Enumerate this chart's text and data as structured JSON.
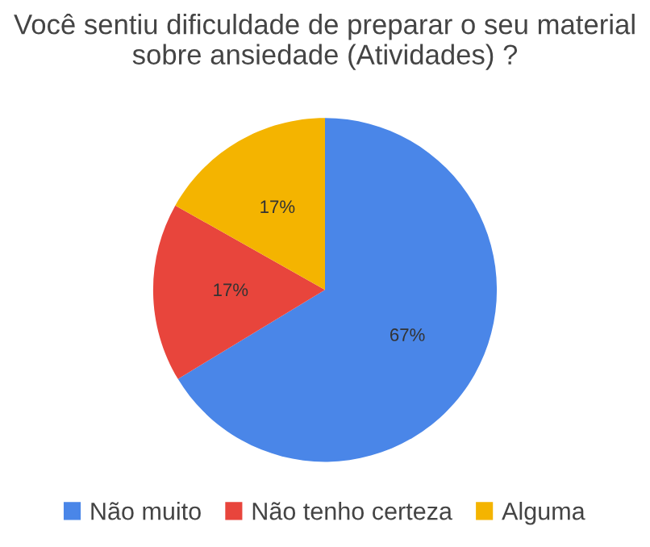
{
  "chart_data": {
    "type": "pie",
    "title": "Você sentiu dificuldade de preparar o seu material sobre ansiedade (Atividades) ?",
    "categories": [
      "Não muito",
      "Não tenho certeza",
      "Alguma"
    ],
    "values": [
      67,
      17,
      17
    ],
    "colors": [
      "#4a86e8",
      "#e8453c",
      "#f4b400"
    ],
    "value_labels": [
      "67%",
      "17%",
      "17%"
    ],
    "legend": "bottom"
  }
}
